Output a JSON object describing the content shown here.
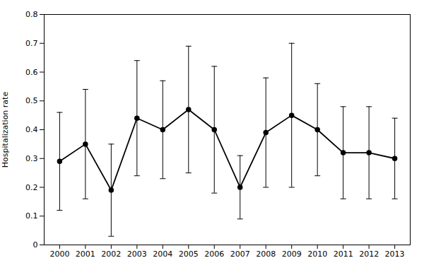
{
  "chart_data": {
    "type": "line",
    "x": [
      2000,
      2001,
      2002,
      2003,
      2004,
      2005,
      2006,
      2007,
      2008,
      2009,
      2010,
      2011,
      2012,
      2013
    ],
    "values": [
      0.29,
      0.35,
      0.19,
      0.44,
      0.4,
      0.47,
      0.4,
      0.2,
      0.39,
      0.45,
      0.4,
      0.32,
      0.32,
      0.3
    ],
    "ci_lower": [
      0.12,
      0.16,
      0.03,
      0.24,
      0.23,
      0.25,
      0.18,
      0.09,
      0.2,
      0.2,
      0.24,
      0.16,
      0.16,
      0.16
    ],
    "ci_upper": [
      0.46,
      0.54,
      0.35,
      0.64,
      0.57,
      0.69,
      0.62,
      0.31,
      0.58,
      0.7,
      0.56,
      0.48,
      0.48,
      0.44
    ],
    "ylabel": "Hospitalization rate",
    "xlim": [
      1999.4,
      2013.6
    ],
    "xticks": [
      2000,
      2001,
      2002,
      2003,
      2004,
      2005,
      2006,
      2007,
      2008,
      2009,
      2010,
      2011,
      2012,
      2013
    ],
    "ylim": [
      0,
      0.8
    ],
    "yticks": [
      0,
      0.1,
      0.2,
      0.3,
      0.4,
      0.5,
      0.6,
      0.7,
      0.8
    ],
    "color": "#000000",
    "marker": "circle",
    "line_style": "solid",
    "grid": false
  }
}
